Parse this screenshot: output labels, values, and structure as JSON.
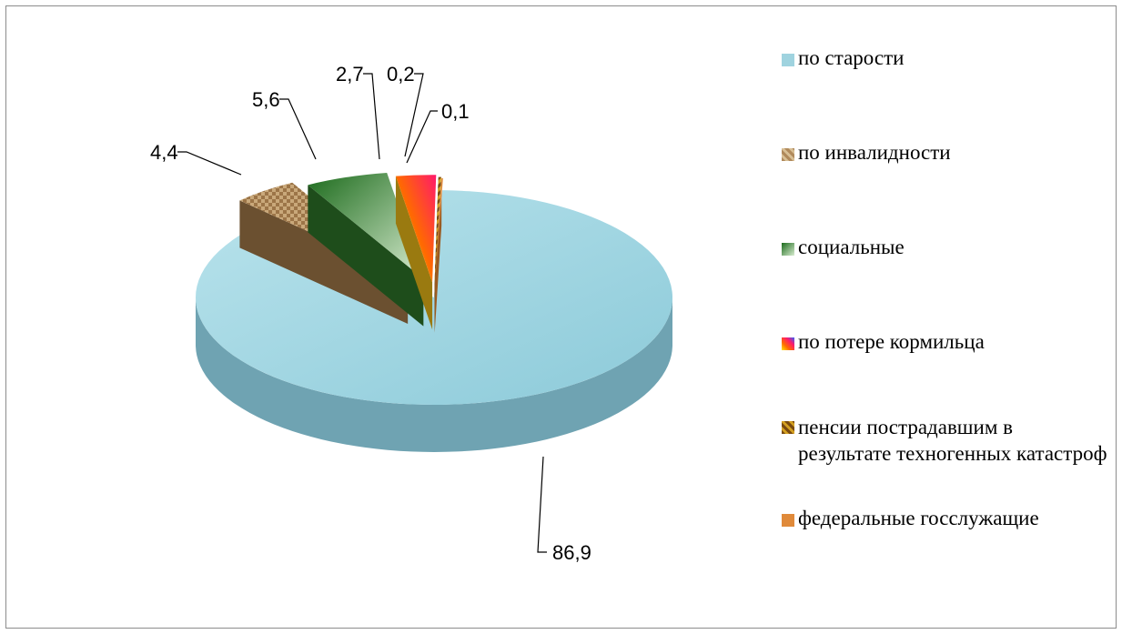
{
  "chart_data": {
    "type": "pie",
    "categories": [
      "по старости",
      "по инвалидности",
      "социальные",
      "по потере кормильца",
      "пенсии пострадавшим в результате техногенных катастроф",
      "федеральные  госслужащие"
    ],
    "values": [
      86.9,
      4.4,
      5.6,
      2.7,
      0.2,
      0.1
    ],
    "value_labels": [
      "86,9",
      "4,4",
      "5,6",
      "2,7",
      "0,2",
      "0,1"
    ],
    "legend_position": "right",
    "exploded": true,
    "three_d": true
  },
  "colors": {
    "slices": [
      "#9fd3df",
      "#b08a5c",
      "#2f7a2a",
      "#f0c020",
      "#8a6a1a",
      "#e08a3a"
    ],
    "slice_sides": [
      "#6fa3b2",
      "#6b5030",
      "#1e4d1b",
      "#9a7a10",
      "#5a4410",
      "#9a5a20"
    ]
  }
}
